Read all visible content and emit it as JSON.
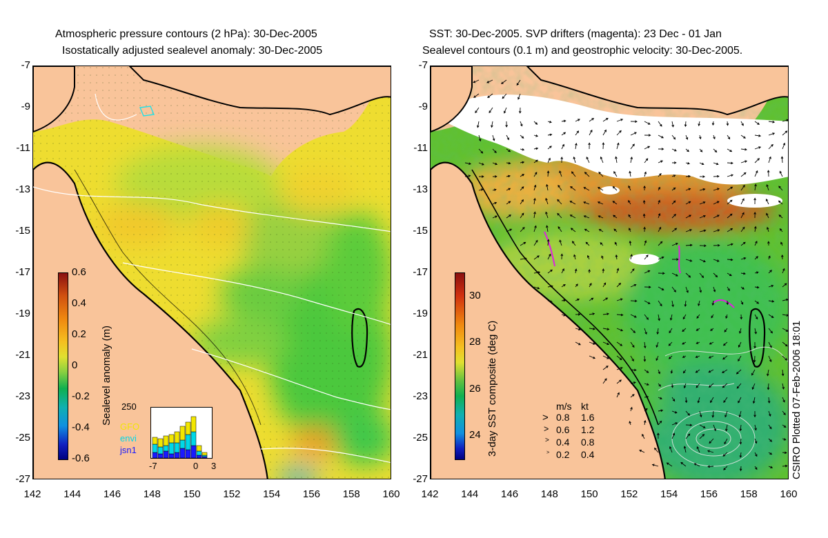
{
  "left_panel": {
    "title_line1": "Atmospheric pressure contours (2 hPa): 30-Dec-2005",
    "title_line2": "Isostatically adjusted sealevel anomaly: 30-Dec-2005",
    "colorbar": {
      "label": "Sealevel anomaly (m)",
      "ticks": [
        "0.6",
        "0.4",
        "0.2",
        "0",
        "-0.2",
        "-0.4",
        "-0.6"
      ],
      "range": [
        -0.6,
        0.6
      ]
    },
    "satellite_inset": {
      "y_max_label": "250",
      "x_ticks": [
        "-7",
        "0",
        "3"
      ],
      "satellites": [
        {
          "name": "GFO",
          "color": "#f2e600"
        },
        {
          "name": "envi",
          "color": "#00d8e8"
        },
        {
          "name": "jsn1",
          "color": "#1a1aff"
        }
      ]
    }
  },
  "right_panel": {
    "title_line1": "SST: 30-Dec-2005. SVP drifters (magenta): 23 Dec - 01 Jan",
    "title_line2": "Sealevel contours (0.1 m) and geostrophic velocity: 30-Dec-2005.",
    "colorbar": {
      "label": "3-day SST composite (deg C)",
      "ticks": [
        "30",
        "28",
        "26",
        "24"
      ],
      "range": [
        23,
        31
      ]
    },
    "velocity_legend": {
      "header_ms": "m/s",
      "header_kt": "kt",
      "rows": [
        {
          "ms": "0.8",
          "kt": "1.6"
        },
        {
          "ms": "0.6",
          "kt": "1.2"
        },
        {
          "ms": "0.4",
          "kt": "0.8"
        },
        {
          "ms": "0.2",
          "kt": "0.4"
        }
      ]
    }
  },
  "axes": {
    "lat_ticks": [
      "-7",
      "-9",
      "-11",
      "-13",
      "-15",
      "-17",
      "-19",
      "-21",
      "-23",
      "-25",
      "-27"
    ],
    "lon_ticks": [
      "142",
      "144",
      "146",
      "148",
      "150",
      "152",
      "154",
      "156",
      "158",
      "160"
    ],
    "lat_range": [
      -27,
      -7
    ],
    "lon_range": [
      142,
      160
    ]
  },
  "credit": "CSIRO Plotted 07-Feb-2006 18:01",
  "colors": {
    "land": "#f9c49a",
    "coast": "#000000"
  }
}
